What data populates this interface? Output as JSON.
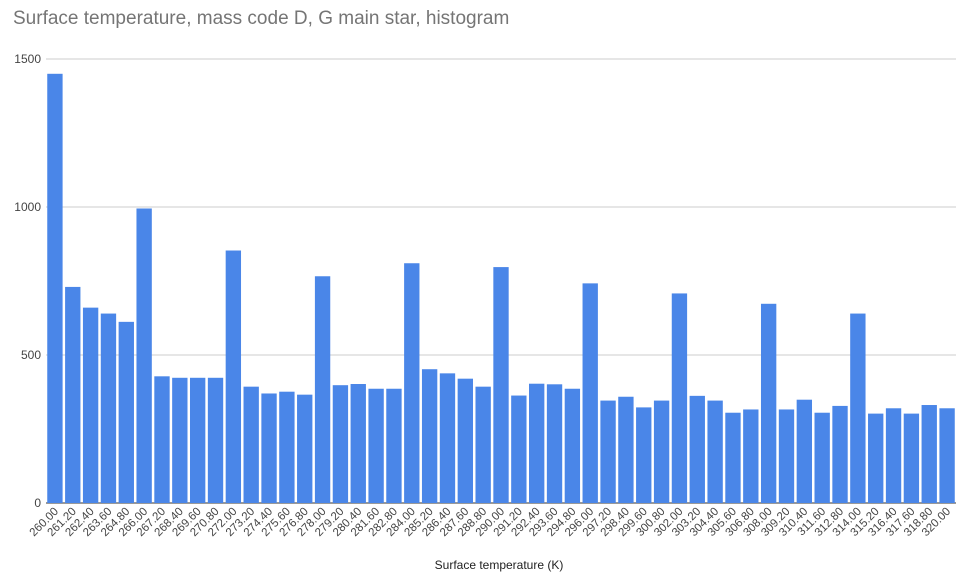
{
  "chart_data": {
    "type": "bar",
    "title": "Surface temperature, mass code D, G main star, histogram",
    "xlabel": "Surface temperature (K)",
    "ylabel": "",
    "ylim": [
      0,
      1500
    ],
    "yticks": [
      "0",
      "500",
      "1000",
      "1500"
    ],
    "grid": true,
    "legend": "none",
    "bar_color": "#4a86e8",
    "categories": [
      "260.00",
      "261.20",
      "262.40",
      "263.60",
      "264.80",
      "266.00",
      "267.20",
      "268.40",
      "269.60",
      "270.80",
      "272.00",
      "273.20",
      "274.40",
      "275.60",
      "276.80",
      "278.00",
      "279.20",
      "280.40",
      "281.60",
      "282.80",
      "284.00",
      "285.20",
      "286.40",
      "287.60",
      "288.80",
      "290.00",
      "291.20",
      "292.40",
      "293.60",
      "294.80",
      "296.00",
      "297.20",
      "298.40",
      "299.60",
      "300.80",
      "302.00",
      "303.20",
      "304.40",
      "305.60",
      "306.80",
      "308.00",
      "309.20",
      "310.40",
      "311.60",
      "312.80",
      "314.00",
      "315.20",
      "316.40",
      "317.60",
      "318.80",
      "320.00"
    ],
    "values": [
      1450,
      730,
      660,
      640,
      612,
      995,
      428,
      423,
      423,
      423,
      853,
      393,
      370,
      376,
      366,
      766,
      398,
      402,
      386,
      386,
      810,
      452,
      438,
      420,
      393,
      797,
      363,
      403,
      401,
      386,
      742,
      346,
      359,
      323,
      346,
      708,
      362,
      346,
      305,
      316,
      673,
      316,
      349,
      305,
      328,
      640,
      302,
      320,
      302,
      331,
      320
    ]
  }
}
